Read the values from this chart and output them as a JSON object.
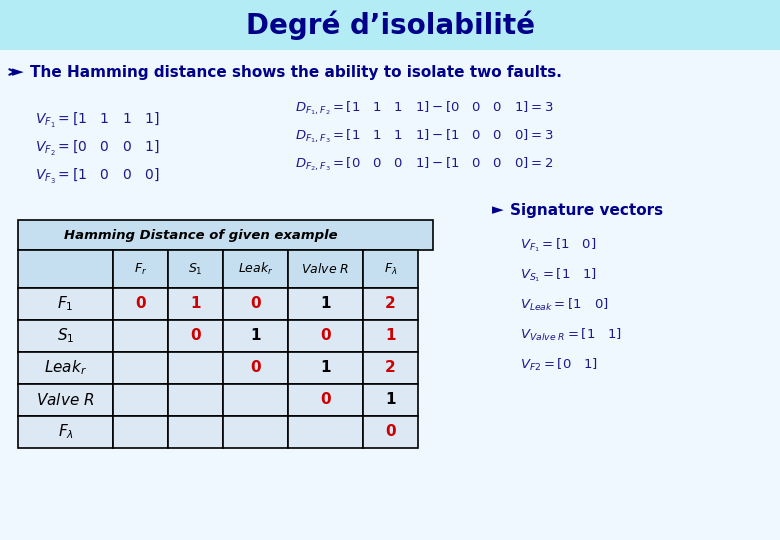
{
  "title": "Degré d’isolabilité",
  "title_bg_color": "#b3ecf5",
  "title_text_color": "#00008B",
  "bg_color": "#f0f8ff",
  "bullet_text": "The Hamming distance shows the ability to isolate two faults.",
  "bullet_color": "#00008B",
  "left_formulas": [
    "$V_{F_1} = [1 \\quad 1 \\quad 1 \\quad 1]$",
    "$V_{F_2} = [0 \\quad 0 \\quad 0 \\quad 1]$",
    "$V_{F_3} = [1 \\quad 0 \\quad 0 \\quad 0]$"
  ],
  "right_formulas": [
    "$D_{F_1,F_2} = [1 \\quad 1 \\quad 1 \\quad 1] - [0 \\quad 0 \\quad 0 \\quad 1] = 3$",
    "$D_{F_1,F_3} = [1 \\quad 1 \\quad 1 \\quad 1] - [1 \\quad 0 \\quad 0 \\quad 0] = 3$",
    "$D_{F_2,F_3} = [0 \\quad 0 \\quad 0 \\quad 1] - [1 \\quad 0 \\quad 0 \\quad 0] = 2$"
  ],
  "formula_color": "#1a1a8c",
  "table_title": "Hamming Distance of given example",
  "table_header": [
    "",
    "$F_r$",
    "$S_1$",
    "$Leak_r$",
    "$Valve\\ R$",
    "$F_\\lambda$"
  ],
  "table_rows": [
    [
      "$F_1$",
      "0",
      "1",
      "0",
      "1",
      "2"
    ],
    [
      "$S_1$",
      "",
      "0",
      "1",
      "0",
      "1"
    ],
    [
      "$Leak_r$",
      "",
      "",
      "0",
      "1",
      "2"
    ],
    [
      "$Valve\\ R$",
      "",
      "",
      "",
      "0",
      "1"
    ],
    [
      "$F_\\lambda$",
      "",
      "",
      "",
      "",
      "0"
    ]
  ],
  "table_cell_bg": "#dce9f5",
  "table_header_bg": "#c5dff0",
  "red_color": "#cc0000",
  "black_color": "#000000",
  "sig_title": "Signature vectors",
  "sig_formulas": [
    "$V_{F_1} = [1 \\quad 0]$",
    "$V_{S_1} = [1 \\quad 1]$",
    "$V_{Leak} = [1 \\quad 0]$",
    "$V_{Valve\\ R} = [1 \\quad 1]$",
    "$V_{F2} = [0 \\quad 1]$"
  ]
}
